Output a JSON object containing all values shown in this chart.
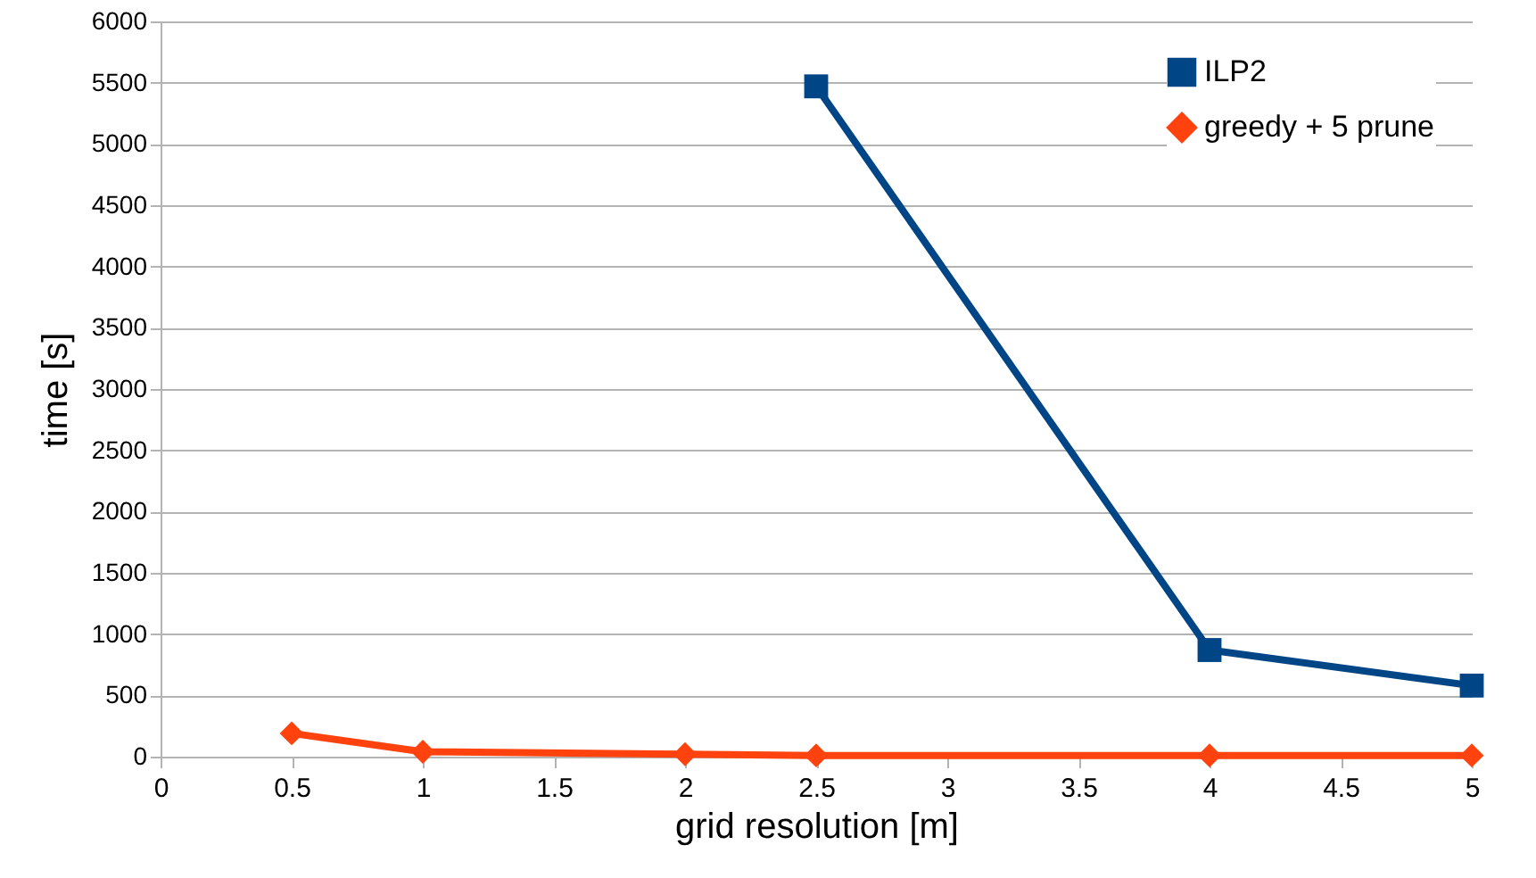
{
  "chart_data": {
    "type": "line",
    "xlabel": "grid resolution [m]",
    "ylabel": "time [s]",
    "xlim": [
      0,
      5
    ],
    "xticks": [
      0,
      0.5,
      1,
      1.5,
      2,
      2.5,
      3,
      3.5,
      4,
      4.5,
      5
    ],
    "ylim": [
      0,
      6000
    ],
    "yticks": [
      0,
      500,
      1000,
      1500,
      2000,
      2500,
      3000,
      3500,
      4000,
      4500,
      5000,
      5500,
      6000
    ],
    "grid": "y",
    "legend": "top right",
    "line_style": "solid",
    "series": [
      {
        "name": "ILP2",
        "color": "#004586",
        "marker": "square",
        "x": [
          2.5,
          4,
          5
        ],
        "values": [
          5470,
          870,
          580
        ]
      },
      {
        "name": "greedy + 5 prune",
        "color": "#ff420e",
        "marker": "diamond",
        "x": [
          0.5,
          1,
          2,
          2.5,
          4,
          5
        ],
        "values": [
          190,
          40,
          20,
          10,
          10,
          10
        ]
      }
    ]
  }
}
